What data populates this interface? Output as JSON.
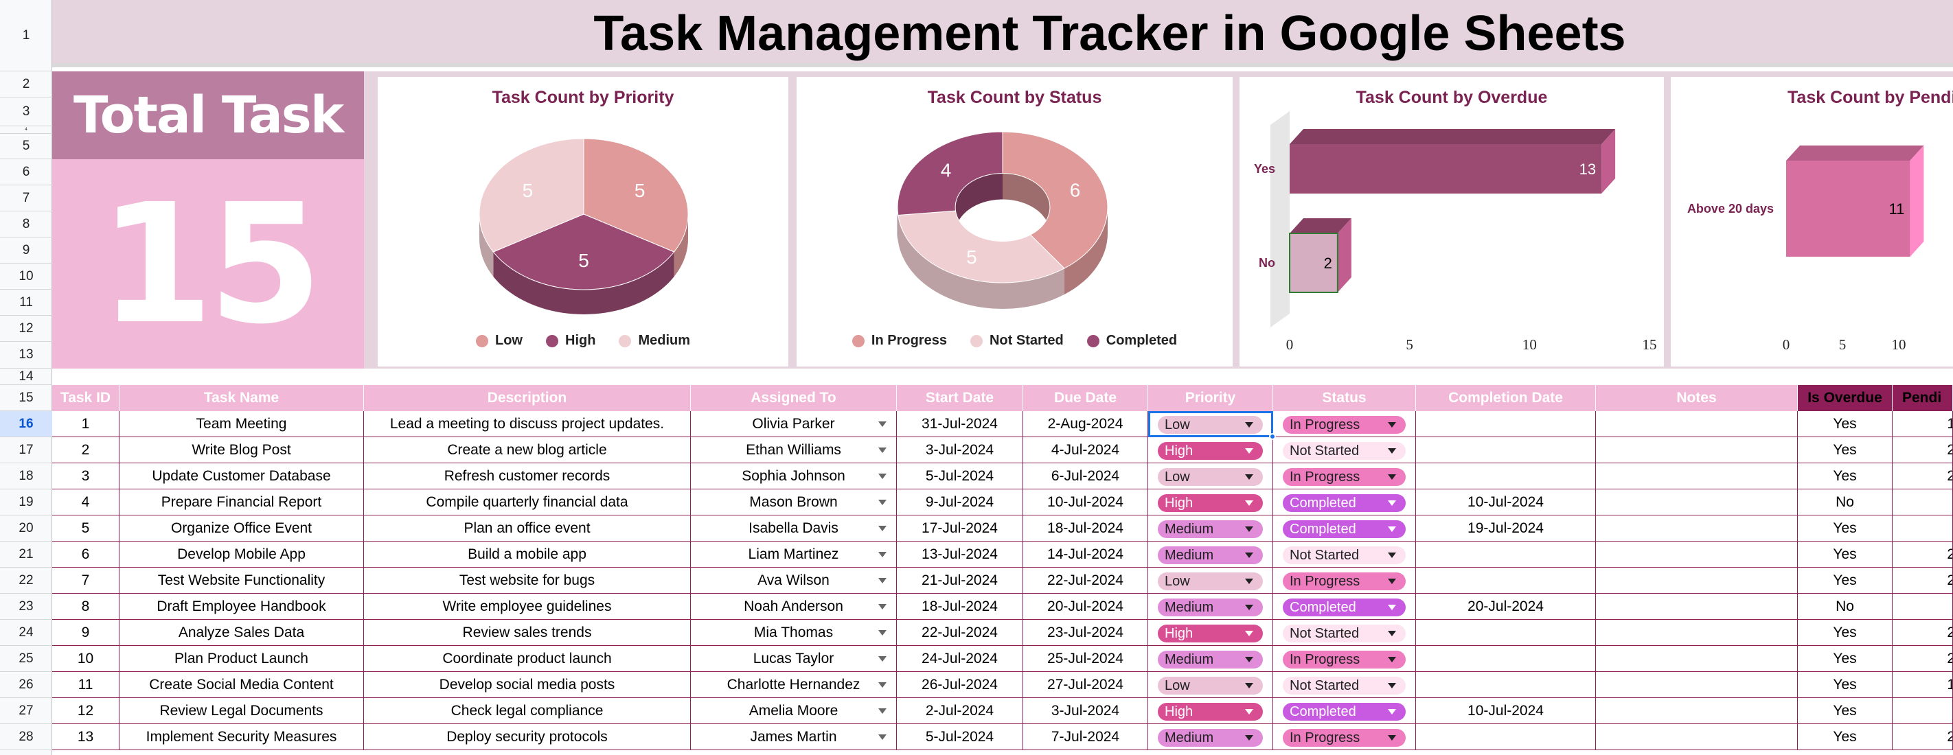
{
  "title": "Task Management Tracker in Google Sheets",
  "row_numbers": [
    "1",
    "2",
    "3",
    "4",
    "5",
    "6",
    "7",
    "8",
    "9",
    "10",
    "11",
    "12",
    "13",
    "14",
    "15",
    "16",
    "17",
    "18",
    "19",
    "20",
    "21",
    "22",
    "23",
    "24",
    "25",
    "26",
    "27",
    "28"
  ],
  "kpi": {
    "label": "Total Task",
    "value": "15"
  },
  "colors": {
    "band": "#e5d3de",
    "kpi_head": "#b97ea0",
    "kpi_body": "#f2b8d8",
    "header": "#f2b8d8",
    "border": "#8e1e58",
    "low": "#e09a9a",
    "high": "#9a4a72",
    "medium": "#f0cfd2",
    "chip_low": "#ecc3d6",
    "chip_high": "#d94d93",
    "chip_medium": "#e08cd9",
    "chip_in_progress": "#f07cc0",
    "chip_completed": "#c75ae0",
    "chip_not_started": "#fde4f0"
  },
  "charts": {
    "priority": {
      "title": "Task Count by Priority",
      "chart_data": {
        "type": "pie",
        "categories": [
          "Low",
          "High",
          "Medium"
        ],
        "values": [
          5,
          5,
          5
        ]
      },
      "legend": [
        "Low",
        "High",
        "Medium"
      ],
      "labels": [
        "5",
        "5",
        "5"
      ]
    },
    "status": {
      "title": "Task Count by Status",
      "chart_data": {
        "type": "pie",
        "categories": [
          "In Progress",
          "Not Started",
          "Completed"
        ],
        "values": [
          6,
          5,
          4
        ]
      },
      "legend": [
        "In Progress",
        "Not Started",
        "Completed"
      ],
      "labels": [
        "6",
        "5",
        "4"
      ]
    },
    "overdue": {
      "title": "Task Count by Overdue",
      "chart_data": {
        "type": "bar",
        "categories": [
          "Yes",
          "No"
        ],
        "values": [
          13,
          2
        ],
        "xlim": [
          0,
          15
        ],
        "xticks": [
          "0",
          "5",
          "10",
          "15"
        ]
      },
      "category_labels": [
        "Yes",
        "No"
      ],
      "value_labels": [
        "13",
        "2"
      ],
      "ticks": [
        "0",
        "5",
        "10",
        "15"
      ]
    },
    "pending": {
      "title": "Task Count by Pendi",
      "chart_data": {
        "type": "bar",
        "categories": [
          "Above 20 days"
        ],
        "values": [
          11
        ],
        "xticks": [
          "0",
          "5",
          "10"
        ]
      },
      "category_labels": [
        "Above 20 days"
      ],
      "value_labels": [
        "11"
      ],
      "ticks": [
        "0",
        "5",
        "10"
      ]
    }
  },
  "table": {
    "headers": [
      "Task ID",
      "Task Name",
      "Description",
      "Assigned To",
      "Start Date",
      "Due Date",
      "Priority",
      "Status",
      "Completion Date",
      "Notes",
      "Is Overdue",
      "Pendi"
    ],
    "rows": [
      {
        "id": "1",
        "name": "Team Meeting",
        "desc": "Lead a meeting to discuss project updates.",
        "assigned": "Olivia Parker",
        "start": "31-Jul-2024",
        "due": "2-Aug-2024",
        "priority": "Low",
        "status": "In Progress",
        "completion": "",
        "notes": "",
        "overdue": "Yes",
        "pending": "1"
      },
      {
        "id": "2",
        "name": "Write Blog Post",
        "desc": "Create a new blog article",
        "assigned": "Ethan Williams",
        "start": "3-Jul-2024",
        "due": "4-Jul-2024",
        "priority": "High",
        "status": "Not Started",
        "completion": "",
        "notes": "",
        "overdue": "Yes",
        "pending": "2"
      },
      {
        "id": "3",
        "name": "Update Customer Database",
        "desc": "Refresh customer records",
        "assigned": "Sophia Johnson",
        "start": "5-Jul-2024",
        "due": "6-Jul-2024",
        "priority": "Low",
        "status": "In Progress",
        "completion": "",
        "notes": "",
        "overdue": "Yes",
        "pending": "2"
      },
      {
        "id": "4",
        "name": "Prepare Financial Report",
        "desc": "Compile quarterly financial data",
        "assigned": "Mason Brown",
        "start": "9-Jul-2024",
        "due": "10-Jul-2024",
        "priority": "High",
        "status": "Completed",
        "completion": "10-Jul-2024",
        "notes": "",
        "overdue": "No",
        "pending": ""
      },
      {
        "id": "5",
        "name": "Organize Office Event",
        "desc": "Plan an office event",
        "assigned": "Isabella Davis",
        "start": "17-Jul-2024",
        "due": "18-Jul-2024",
        "priority": "Medium",
        "status": "Completed",
        "completion": "19-Jul-2024",
        "notes": "",
        "overdue": "Yes",
        "pending": ""
      },
      {
        "id": "6",
        "name": "Develop Mobile App",
        "desc": "Build a mobile app",
        "assigned": "Liam Martinez",
        "start": "13-Jul-2024",
        "due": "14-Jul-2024",
        "priority": "Medium",
        "status": "Not Started",
        "completion": "",
        "notes": "",
        "overdue": "Yes",
        "pending": "2"
      },
      {
        "id": "7",
        "name": "Test Website Functionality",
        "desc": "Test website for bugs",
        "assigned": "Ava Wilson",
        "start": "21-Jul-2024",
        "due": "22-Jul-2024",
        "priority": "Low",
        "status": "In Progress",
        "completion": "",
        "notes": "",
        "overdue": "Yes",
        "pending": "2"
      },
      {
        "id": "8",
        "name": "Draft Employee Handbook",
        "desc": "Write employee guidelines",
        "assigned": "Noah Anderson",
        "start": "18-Jul-2024",
        "due": "20-Jul-2024",
        "priority": "Medium",
        "status": "Completed",
        "completion": "20-Jul-2024",
        "notes": "",
        "overdue": "No",
        "pending": ""
      },
      {
        "id": "9",
        "name": "Analyze Sales Data",
        "desc": "Review sales trends",
        "assigned": "Mia Thomas",
        "start": "22-Jul-2024",
        "due": "23-Jul-2024",
        "priority": "High",
        "status": "Not Started",
        "completion": "",
        "notes": "",
        "overdue": "Yes",
        "pending": "2"
      },
      {
        "id": "10",
        "name": "Plan Product Launch",
        "desc": "Coordinate product launch",
        "assigned": "Lucas Taylor",
        "start": "24-Jul-2024",
        "due": "25-Jul-2024",
        "priority": "Medium",
        "status": "In Progress",
        "completion": "",
        "notes": "",
        "overdue": "Yes",
        "pending": "2"
      },
      {
        "id": "11",
        "name": "Create Social Media Content",
        "desc": "Develop social media posts",
        "assigned": "Charlotte Hernandez",
        "start": "26-Jul-2024",
        "due": "27-Jul-2024",
        "priority": "Low",
        "status": "Not Started",
        "completion": "",
        "notes": "",
        "overdue": "Yes",
        "pending": "1"
      },
      {
        "id": "12",
        "name": "Review Legal Documents",
        "desc": "Check legal compliance",
        "assigned": "Amelia Moore",
        "start": "2-Jul-2024",
        "due": "3-Jul-2024",
        "priority": "High",
        "status": "Completed",
        "completion": "10-Jul-2024",
        "notes": "",
        "overdue": "Yes",
        "pending": ""
      },
      {
        "id": "13",
        "name": "Implement Security Measures",
        "desc": "Deploy security protocols",
        "assigned": "James Martin",
        "start": "5-Jul-2024",
        "due": "7-Jul-2024",
        "priority": "Medium",
        "status": "In Progress",
        "completion": "",
        "notes": "",
        "overdue": "Yes",
        "pending": "2"
      }
    ]
  }
}
